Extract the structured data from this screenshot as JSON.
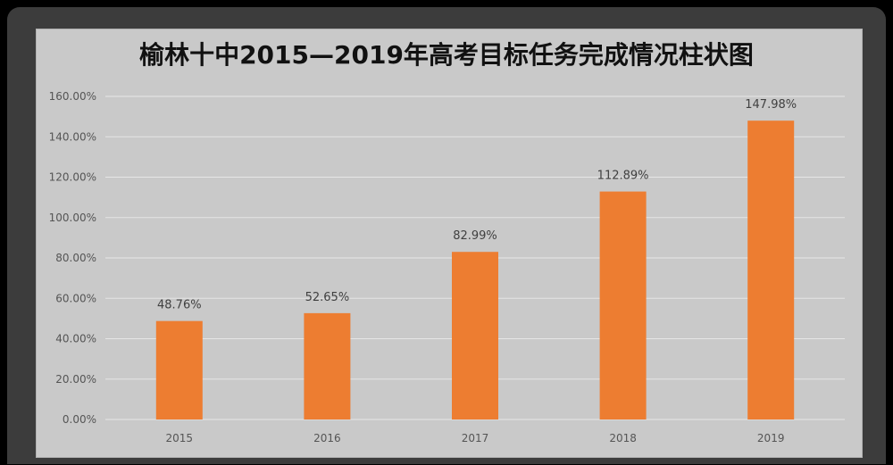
{
  "chart_data": {
    "type": "bar",
    "title": "榆林十中2015—2019年高考目标任务完成情况柱状图",
    "categories": [
      "2015",
      "2016",
      "2017",
      "2018",
      "2019"
    ],
    "values": [
      48.76,
      52.65,
      82.99,
      112.89,
      147.98
    ],
    "data_labels": [
      "48.76%",
      "52.65%",
      "82.99%",
      "112.89%",
      "147.98%"
    ],
    "y_ticks": [
      "0.00%",
      "20.00%",
      "40.00%",
      "60.00%",
      "80.00%",
      "100.00%",
      "120.00%",
      "140.00%",
      "160.00%"
    ],
    "ylim": [
      0,
      160
    ],
    "xlabel": "",
    "ylabel": "",
    "grid": true,
    "legend": "none",
    "bar_color": "#ED7D31",
    "grid_color": "#e6e6e6",
    "background_color": "#c9c9c9"
  }
}
